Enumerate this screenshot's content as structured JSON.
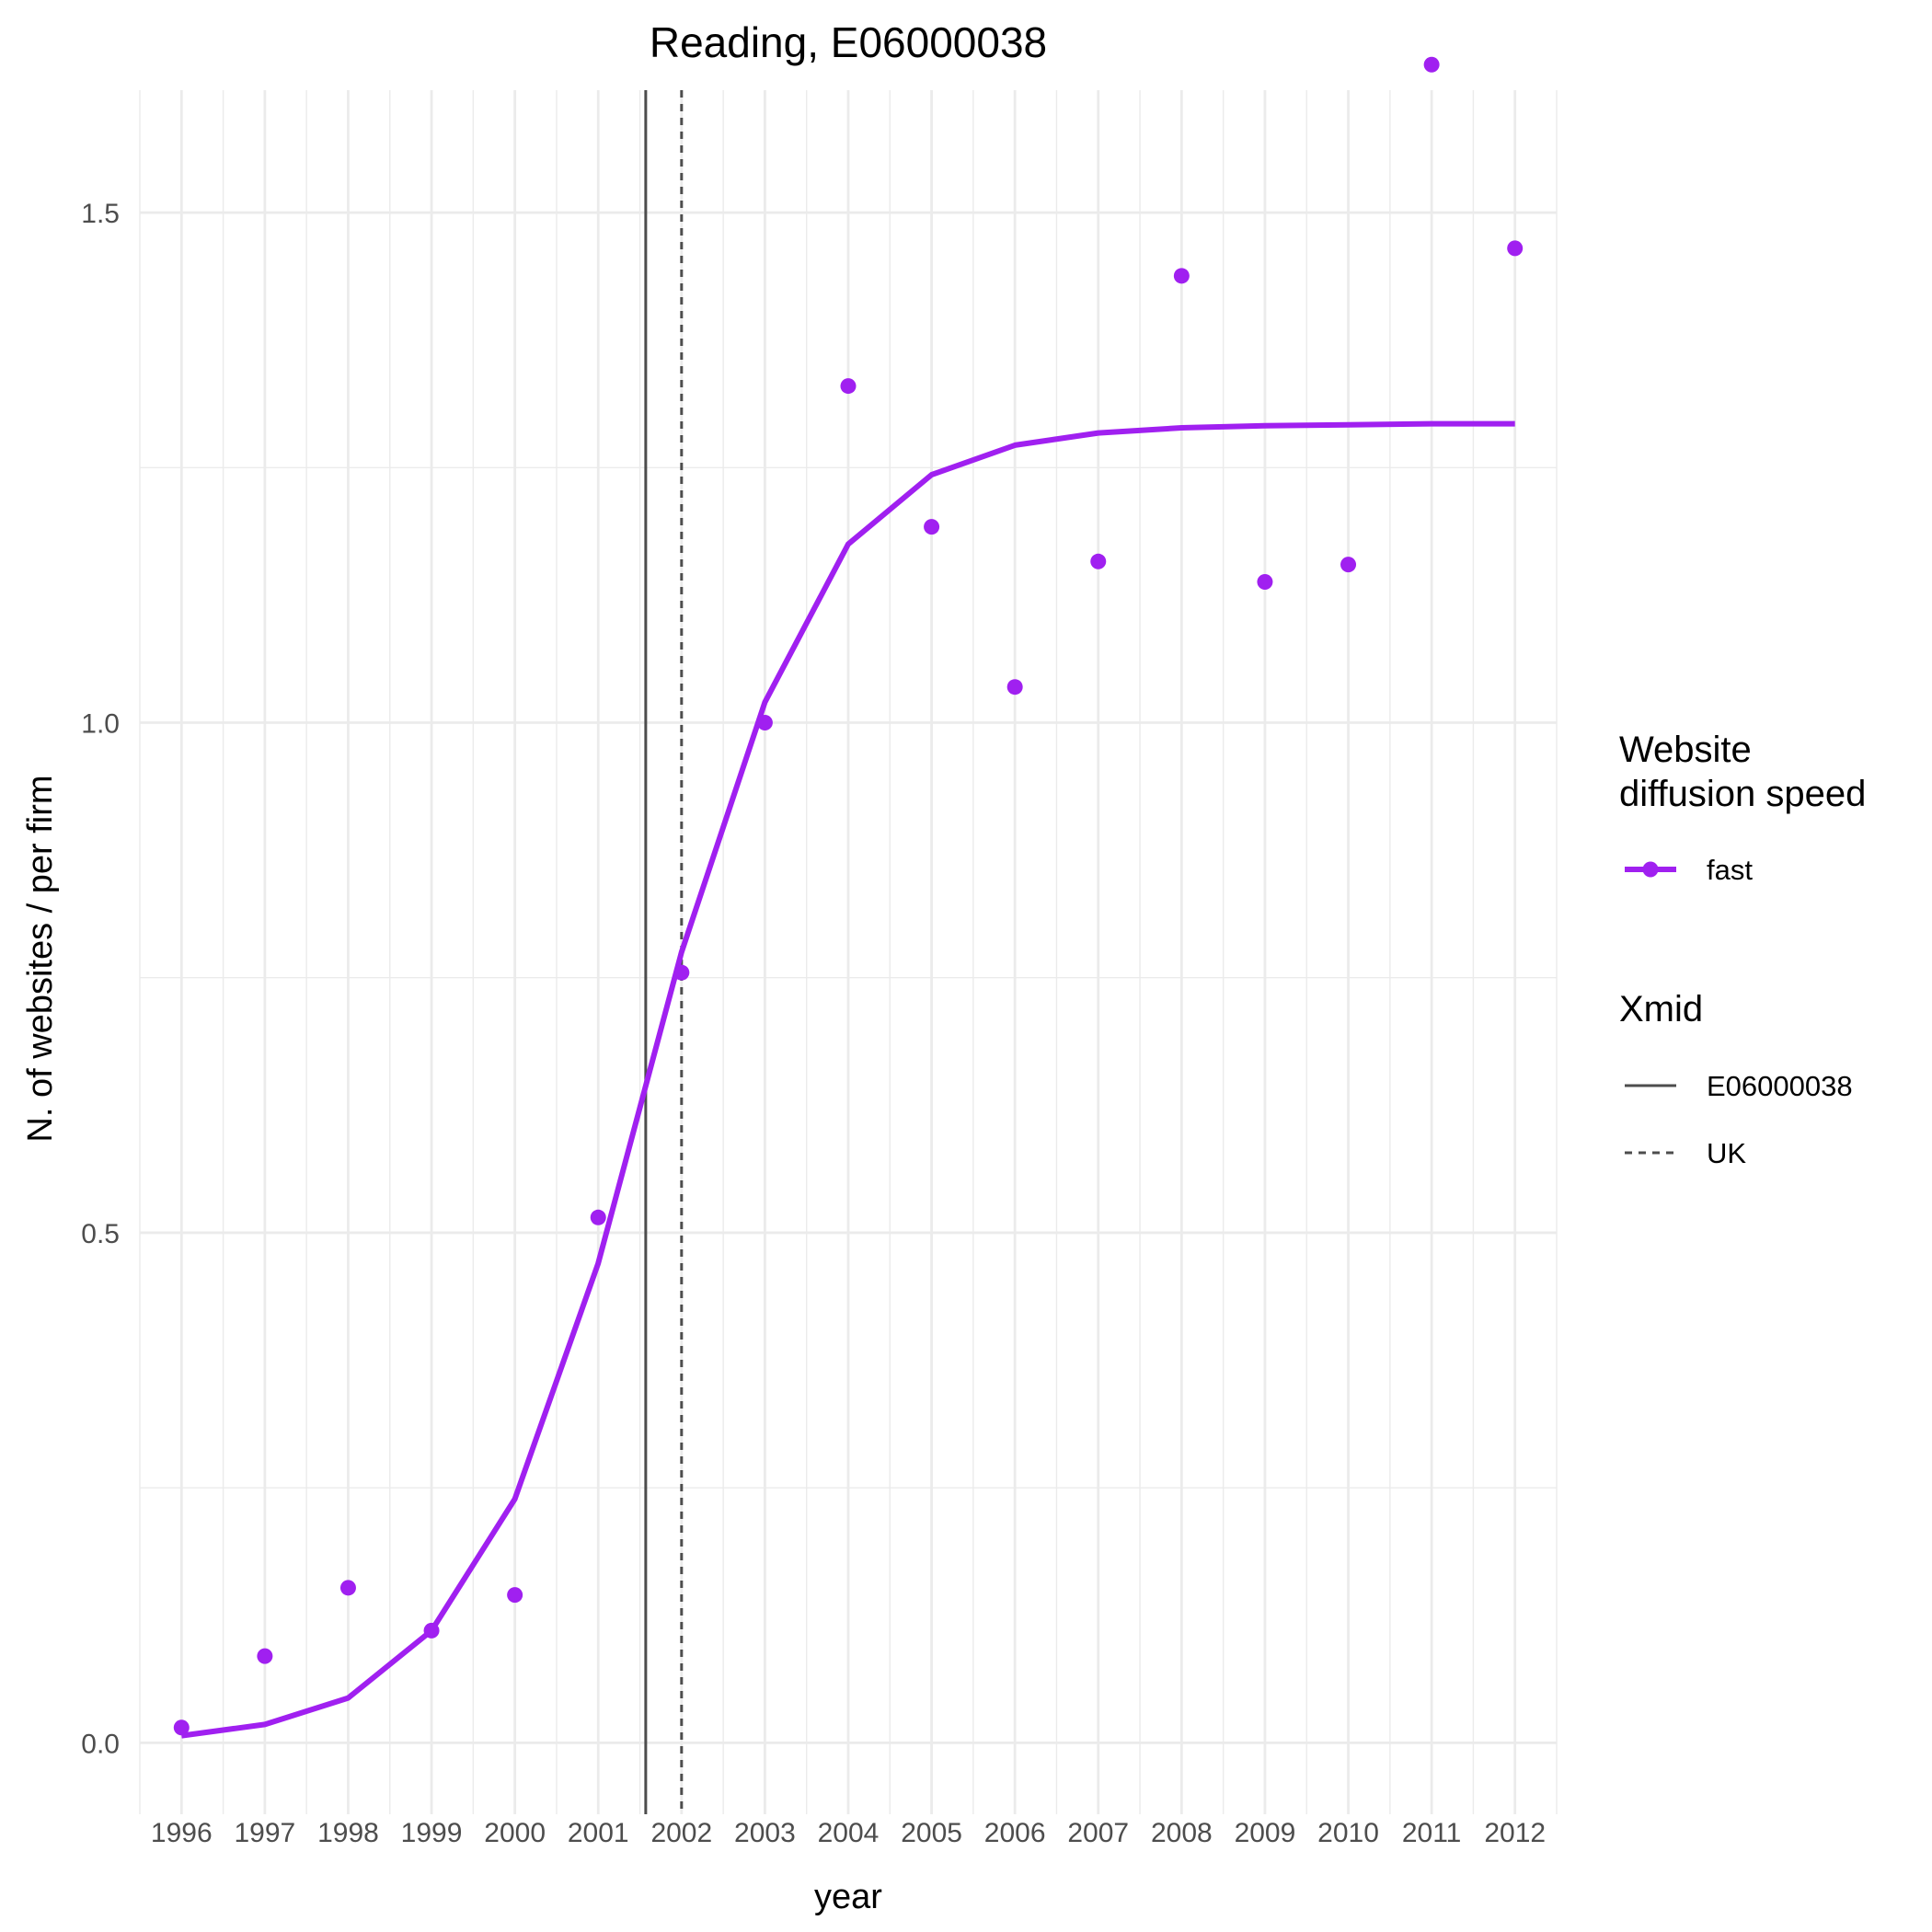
{
  "chart_data": {
    "type": "line",
    "title": "Reading, E06000038",
    "xlabel": "year",
    "ylabel": "N. of websites / per firm",
    "x": [
      1996,
      1997,
      1998,
      1999,
      2000,
      2001,
      2002,
      2003,
      2004,
      2005,
      2006,
      2007,
      2008,
      2009,
      2010,
      2011,
      2012
    ],
    "x_tick_labels": [
      "1996",
      "1997",
      "1998",
      "1999",
      "2000",
      "2001",
      "2002",
      "2003",
      "2004",
      "2005",
      "2006",
      "2007",
      "2008",
      "2009",
      "2010",
      "2011",
      "2012"
    ],
    "xlim": [
      1995.5,
      2012.5
    ],
    "ylim": [
      -0.07,
      1.62
    ],
    "y_ticks": [
      0.0,
      0.5,
      1.0,
      1.5
    ],
    "y_tick_labels": [
      "0.0",
      "0.5",
      "1.0",
      "1.5"
    ],
    "grid": true,
    "series": [
      {
        "name": "fast",
        "color": "#A020F0",
        "points": [
          0.015,
          0.085,
          0.152,
          0.11,
          0.145,
          0.515,
          0.755,
          1.0,
          1.33,
          1.192,
          1.035,
          1.158,
          1.438,
          1.138,
          1.155,
          1.645,
          1.465
        ],
        "fit": [
          0.007,
          0.018,
          0.044,
          0.11,
          0.239,
          0.47,
          0.775,
          1.02,
          1.175,
          1.243,
          1.272,
          1.284,
          1.289,
          1.291,
          1.292,
          1.293,
          1.293
        ]
      }
    ],
    "vlines": [
      {
        "name": "E06000038",
        "x": 2001.57,
        "linetype": "solid",
        "color": "#4d4d4d"
      },
      {
        "name": "UK",
        "x": 2002.0,
        "linetype": "dashed",
        "color": "#4d4d4d"
      }
    ],
    "legend": {
      "placement": "right",
      "speed_title": "Website\ndiffusion speed",
      "speed_title_lines": [
        "Website",
        "diffusion speed"
      ],
      "speed_entries": [
        {
          "label": "fast",
          "color": "#A020F0"
        }
      ],
      "xmid_title": "Xmid",
      "xmid_entries": [
        {
          "label": "E06000038",
          "linetype": "solid"
        },
        {
          "label": "UK",
          "linetype": "dashed"
        }
      ]
    }
  }
}
